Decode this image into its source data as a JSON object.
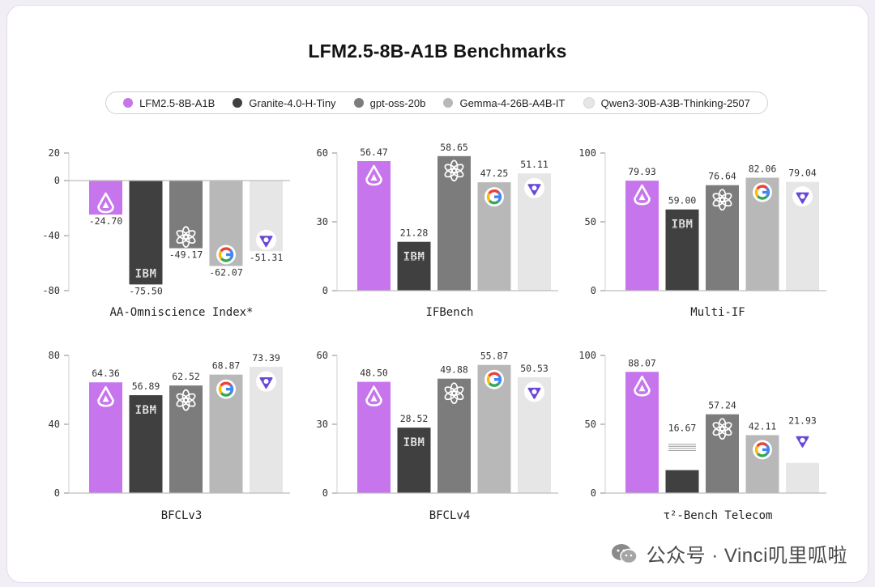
{
  "title": "LFM2.5-8B-A1B Benchmarks",
  "legend": [
    {
      "name": "LFM2.5-8B-A1B",
      "color": "#c775ec"
    },
    {
      "name": "Granite-4.0-H-Tiny",
      "color": "#404040"
    },
    {
      "name": "gpt-oss-20b",
      "color": "#7c7c7c"
    },
    {
      "name": "Gemma-4-26B-A4B-IT",
      "color": "#b8b8b8"
    },
    {
      "name": "Qwen3-30B-A3B-Thinking-2507",
      "color": "#e6e6e6"
    }
  ],
  "icons": [
    "liquid-logo-icon",
    "ibm-logo-icon",
    "openai-logo-icon",
    "google-logo-icon",
    "qwen-logo-icon"
  ],
  "watermark": "公众号 · Vinci叽里呱啦",
  "chart_data": [
    {
      "type": "bar",
      "title": "AA-Omniscience Index*",
      "categories": [
        "LFM2.5-8B-A1B",
        "Granite-4.0-H-Tiny",
        "gpt-oss-20b",
        "Gemma-4-26B-A4B-IT",
        "Qwen3-30B-A3B-Thinking-2507"
      ],
      "values": [
        -24.7,
        -75.5,
        -49.17,
        -62.07,
        -51.31
      ],
      "labels": [
        "-24.70",
        "-75.50",
        "-49.17",
        "-62.07",
        "-51.31"
      ],
      "ylim": [
        -80,
        20
      ],
      "yticks": [
        20,
        0,
        -40,
        -80
      ],
      "ytick_labels": [
        "20",
        "0",
        "-40",
        "-80"
      ]
    },
    {
      "type": "bar",
      "title": "IFBench",
      "categories": [
        "LFM2.5-8B-A1B",
        "Granite-4.0-H-Tiny",
        "gpt-oss-20b",
        "Gemma-4-26B-A4B-IT",
        "Qwen3-30B-A3B-Thinking-2507"
      ],
      "values": [
        56.47,
        21.28,
        58.65,
        47.25,
        51.11
      ],
      "labels": [
        "56.47",
        "21.28",
        "58.65",
        "47.25",
        "51.11"
      ],
      "ylim": [
        0,
        60
      ],
      "yticks": [
        60,
        30,
        0
      ],
      "ytick_labels": [
        "60",
        "30",
        "0"
      ]
    },
    {
      "type": "bar",
      "title": "Multi-IF",
      "categories": [
        "LFM2.5-8B-A1B",
        "Granite-4.0-H-Tiny",
        "gpt-oss-20b",
        "Gemma-4-26B-A4B-IT",
        "Qwen3-30B-A3B-Thinking-2507"
      ],
      "values": [
        79.93,
        59.0,
        76.64,
        82.06,
        79.04
      ],
      "labels": [
        "79.93",
        "59.00",
        "76.64",
        "82.06",
        "79.04"
      ],
      "ylim": [
        0,
        100
      ],
      "yticks": [
        100,
        50,
        0
      ],
      "ytick_labels": [
        "100",
        "50",
        "0"
      ]
    },
    {
      "type": "bar",
      "title": "BFCLv3",
      "categories": [
        "LFM2.5-8B-A1B",
        "Granite-4.0-H-Tiny",
        "gpt-oss-20b",
        "Gemma-4-26B-A4B-IT",
        "Qwen3-30B-A3B-Thinking-2507"
      ],
      "values": [
        64.36,
        56.89,
        62.52,
        68.87,
        73.39
      ],
      "labels": [
        "64.36",
        "56.89",
        "62.52",
        "68.87",
        "73.39"
      ],
      "ylim": [
        0,
        80
      ],
      "yticks": [
        80,
        40,
        0
      ],
      "ytick_labels": [
        "80",
        "40",
        "0"
      ]
    },
    {
      "type": "bar",
      "title": "BFCLv4",
      "categories": [
        "LFM2.5-8B-A1B",
        "Granite-4.0-H-Tiny",
        "gpt-oss-20b",
        "Gemma-4-26B-A4B-IT",
        "Qwen3-30B-A3B-Thinking-2507"
      ],
      "values": [
        48.5,
        28.52,
        49.88,
        55.87,
        50.53
      ],
      "labels": [
        "48.50",
        "28.52",
        "49.88",
        "55.87",
        "50.53"
      ],
      "ylim": [
        0,
        60
      ],
      "yticks": [
        60,
        30,
        0
      ],
      "ytick_labels": [
        "60",
        "30",
        "0"
      ]
    },
    {
      "type": "bar",
      "title": "τ²-Bench Telecom",
      "categories": [
        "LFM2.5-8B-A1B",
        "Granite-4.0-H-Tiny",
        "gpt-oss-20b",
        "Gemma-4-26B-A4B-IT",
        "Qwen3-30B-A3B-Thinking-2507"
      ],
      "values": [
        88.07,
        16.67,
        57.24,
        42.11,
        21.93
      ],
      "labels": [
        "88.07",
        "16.67",
        "57.24",
        "42.11",
        "21.93"
      ],
      "ylim": [
        0,
        100
      ],
      "yticks": [
        100,
        50,
        0
      ],
      "ytick_labels": [
        "100",
        "50",
        "0"
      ]
    }
  ]
}
